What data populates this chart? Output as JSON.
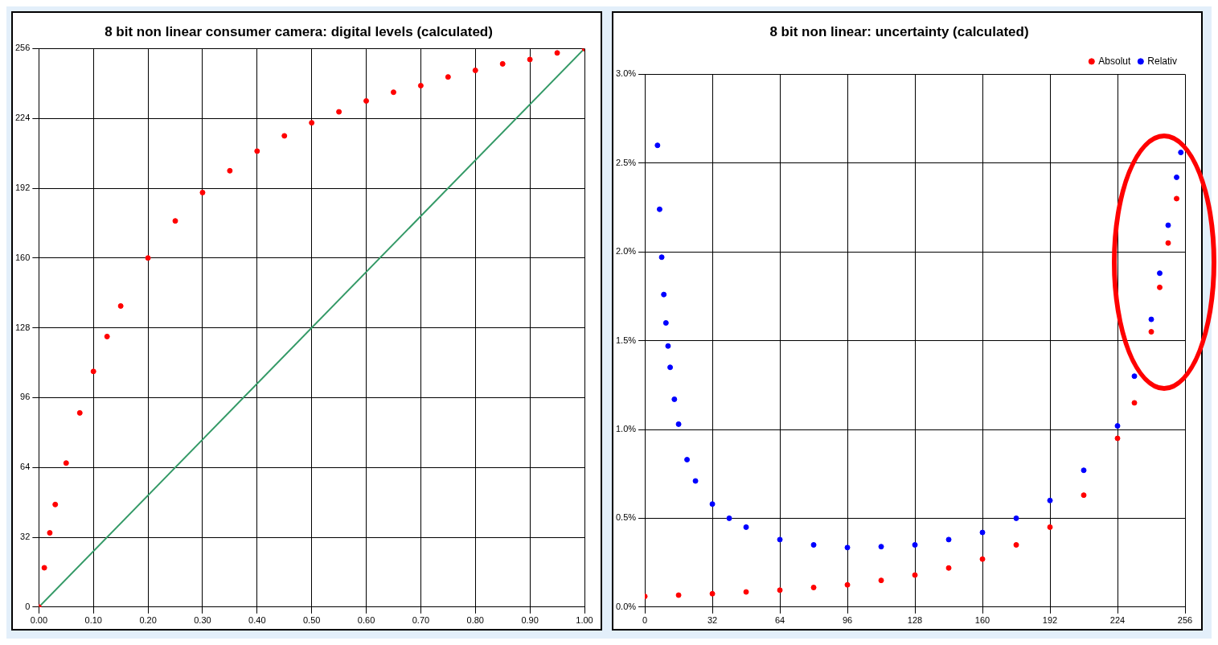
{
  "chart_data": [
    {
      "type": "scatter",
      "title": "8 bit non linear consumer camera: digital levels (calculated)",
      "xlim": [
        0,
        1
      ],
      "xticks": [
        {
          "value": 0,
          "label": "0.00"
        },
        {
          "value": 0.1,
          "label": "0.10"
        },
        {
          "value": 0.2,
          "label": "0.20"
        },
        {
          "value": 0.3,
          "label": "0.30"
        },
        {
          "value": 0.4,
          "label": "0.40"
        },
        {
          "value": 0.5,
          "label": "0.50"
        },
        {
          "value": 0.6,
          "label": "0.60"
        },
        {
          "value": 0.7,
          "label": "0.70"
        },
        {
          "value": 0.8,
          "label": "0.80"
        },
        {
          "value": 0.9,
          "label": "0.90"
        },
        {
          "value": 1,
          "label": "1.00"
        }
      ],
      "ylim": [
        0,
        256
      ],
      "yticks": [
        0,
        32,
        64,
        96,
        128,
        160,
        192,
        224,
        256
      ],
      "grid": true,
      "legend": false,
      "marker": "circle",
      "series": [
        {
          "color": "#ff0000",
          "x": [
            0,
            0.01,
            0.02,
            0.03,
            0.05,
            0.075,
            0.1,
            0.125,
            0.15,
            0.2,
            0.25,
            0.3,
            0.35,
            0.4,
            0.45,
            0.5,
            0.55,
            0.6,
            0.65,
            0.7,
            0.75,
            0.8,
            0.85,
            0.9,
            0.95,
            1
          ],
          "values": [
            0,
            18,
            34,
            47,
            66,
            89,
            108,
            124,
            138,
            160,
            177,
            190,
            200,
            209,
            216,
            222,
            227,
            232,
            236,
            239,
            243,
            246,
            249,
            251,
            254,
            256
          ]
        },
        {
          "type": "line",
          "marker": "none",
          "color": "#339966",
          "x": [
            0,
            1
          ],
          "values": [
            0,
            256
          ]
        }
      ]
    },
    {
      "type": "scatter",
      "title": "8 bit non linear: uncertainty (calculated)",
      "xlim": [
        0,
        256
      ],
      "xticks": [
        0,
        32,
        64,
        96,
        128,
        160,
        192,
        224,
        256
      ],
      "ylim": [
        0,
        3
      ],
      "yticks": [
        {
          "value": 0,
          "label": "0.0%"
        },
        {
          "value": 0.5,
          "label": "0.5%"
        },
        {
          "value": 1,
          "label": "1.0%"
        },
        {
          "value": 1.5,
          "label": "1.5%"
        },
        {
          "value": 2,
          "label": "2.0%"
        },
        {
          "value": 2.5,
          "label": "2.5%"
        },
        {
          "value": 3,
          "label": "3.0%"
        }
      ],
      "grid": true,
      "legend": "top right",
      "marker": "circle",
      "series": [
        {
          "name": "Absolut",
          "color": "#ff0000",
          "x": [
            0,
            16,
            32,
            48,
            64,
            80,
            96,
            112,
            128,
            144,
            160,
            176,
            192,
            208,
            224,
            232,
            240,
            244,
            248,
            252
          ],
          "values": [
            0.06,
            0.067,
            0.075,
            0.085,
            0.095,
            0.11,
            0.125,
            0.15,
            0.18,
            0.22,
            0.27,
            0.35,
            0.45,
            0.63,
            0.95,
            1.15,
            1.55,
            1.8,
            2.05,
            2.3
          ]
        },
        {
          "name": "Relativ",
          "color": "#0000ff",
          "x": [
            6,
            7,
            8,
            9,
            10,
            11,
            12,
            14,
            16,
            20,
            24,
            32,
            40,
            48,
            64,
            80,
            96,
            112,
            128,
            144,
            160,
            176,
            192,
            208,
            224,
            232,
            240,
            244,
            248,
            252,
            254
          ],
          "values": [
            2.6,
            2.24,
            1.97,
            1.76,
            1.6,
            1.47,
            1.35,
            1.17,
            1.03,
            0.83,
            0.71,
            0.58,
            0.5,
            0.45,
            0.38,
            0.35,
            0.335,
            0.34,
            0.35,
            0.38,
            0.42,
            0.5,
            0.6,
            0.77,
            1.02,
            1.3,
            1.62,
            1.88,
            2.15,
            2.42,
            2.56
          ]
        }
      ]
    }
  ]
}
